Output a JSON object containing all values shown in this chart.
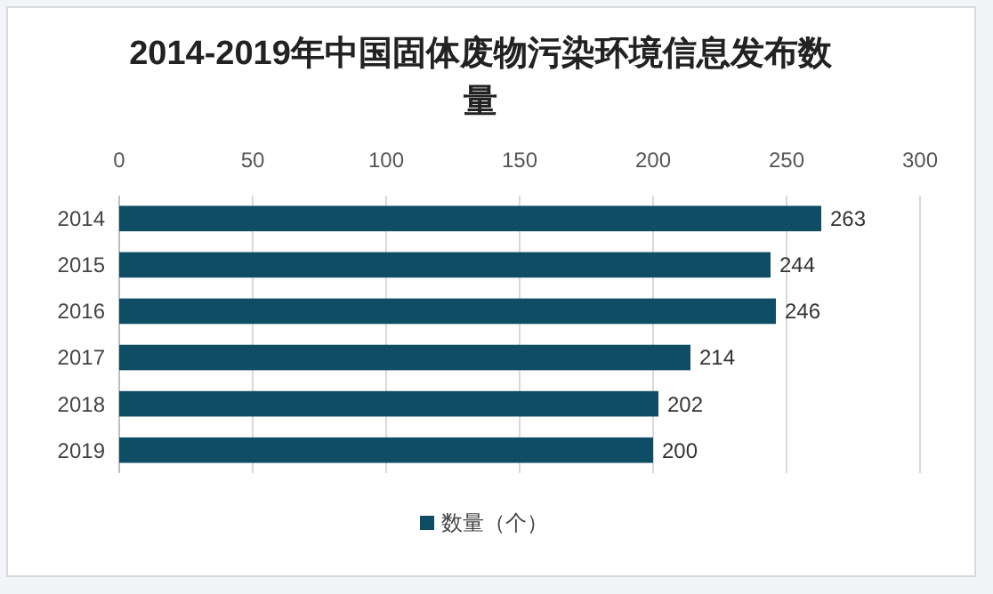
{
  "chart_data": {
    "type": "bar",
    "orientation": "horizontal",
    "title": "2014-2019年中国固体废物污染环境信息发布数量",
    "categories": [
      "2014",
      "2015",
      "2016",
      "2017",
      "2018",
      "2019"
    ],
    "series": [
      {
        "name": "数量（个）",
        "color": "#0e4d64",
        "values": [
          263,
          244,
          246,
          214,
          202,
          200
        ]
      }
    ],
    "xlim": [
      0,
      300
    ],
    "xticks": [
      0,
      50,
      100,
      150,
      200,
      250,
      300
    ],
    "grid": "x",
    "data_labels": true,
    "legend": "bottom"
  }
}
